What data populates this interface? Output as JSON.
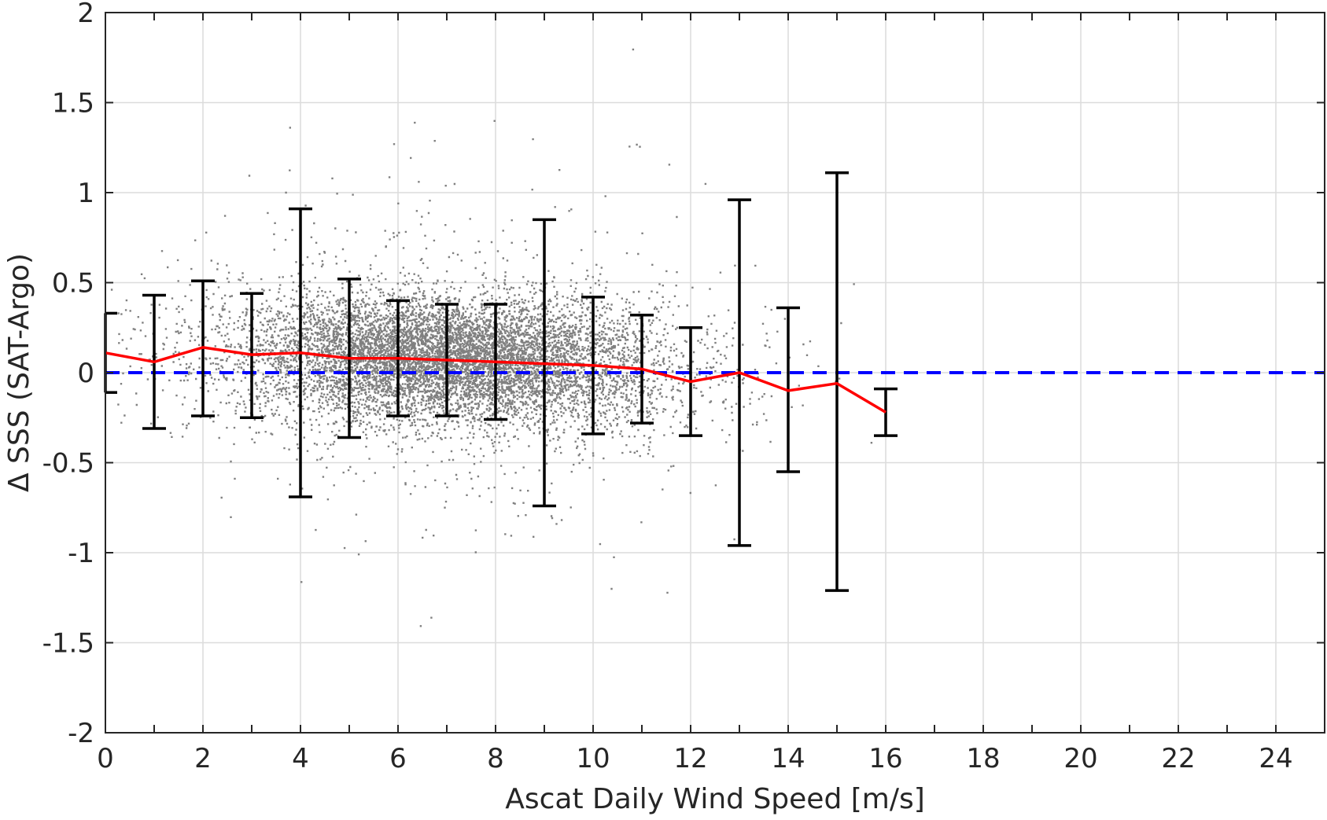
{
  "chart_data": {
    "type": "scatter",
    "title": "",
    "xlabel": "Ascat Daily Wind Speed [m/s]",
    "ylabel": "Δ SSS (SAT-Argo)",
    "xlim": [
      0,
      25
    ],
    "ylim": [
      -2,
      2
    ],
    "x_ticks": [
      0,
      2,
      4,
      6,
      8,
      10,
      12,
      14,
      16,
      18,
      20,
      22,
      24
    ],
    "y_ticks": [
      -2,
      -1.5,
      -1,
      -0.5,
      0,
      0.5,
      1,
      1.5,
      2
    ],
    "grid": true,
    "legend": "none",
    "colors": {
      "scatter": "#808080",
      "mean_line": "#ff0000",
      "error_bars": "#000000",
      "zero_line": "#0000ff",
      "grid": "#dcdcdc"
    },
    "scatter_points": {
      "description_of_cloud": "dense gray scatter of individual collocations",
      "approx_count": 30000,
      "x_range": [
        0,
        16.5
      ],
      "center_x": 7,
      "center_y": 0.08
    },
    "series": [
      {
        "type": "line",
        "x": [
          0,
          1,
          2,
          3,
          4,
          5,
          6,
          7,
          8,
          9,
          10,
          11,
          12,
          13,
          14,
          15,
          16
        ],
        "values": [
          0.11,
          0.06,
          0.14,
          0.1,
          0.11,
          0.08,
          0.08,
          0.07,
          0.06,
          0.05,
          0.04,
          0.02,
          -0.05,
          0.0,
          -0.1,
          -0.06,
          -0.22
        ]
      },
      {
        "type": "errorbar",
        "x": [
          0,
          1,
          2,
          3,
          4,
          5,
          6,
          7,
          8,
          9,
          10,
          11,
          12,
          13,
          14,
          15,
          16
        ],
        "lower": [
          -0.11,
          -0.31,
          -0.24,
          -0.25,
          -0.69,
          -0.36,
          -0.24,
          -0.24,
          -0.26,
          -0.74,
          -0.34,
          -0.28,
          -0.35,
          -0.96,
          -0.55,
          -1.21,
          -0.35
        ],
        "upper": [
          0.33,
          0.43,
          0.51,
          0.44,
          0.91,
          0.52,
          0.4,
          0.38,
          0.38,
          0.85,
          0.42,
          0.32,
          0.25,
          0.96,
          0.36,
          1.11,
          -0.09
        ]
      },
      {
        "type": "reference_line",
        "y": 0
      }
    ]
  }
}
